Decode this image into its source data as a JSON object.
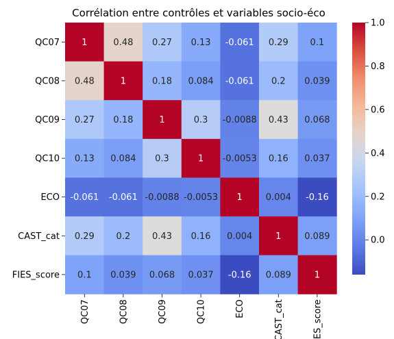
{
  "chart_data": {
    "type": "heatmap",
    "title": "Corrélation entre contrôles et variables socio-éco",
    "xlabel": "",
    "ylabel": "",
    "row_labels": [
      "QC07",
      "QC08",
      "QC09",
      "QC10",
      "ECO",
      "CAST_cat",
      "FIES_score"
    ],
    "col_labels": [
      "QC07",
      "QC08",
      "QC09",
      "QC10",
      "ECO",
      "CAST_cat",
      "FIES_score"
    ],
    "values": [
      [
        1,
        0.48,
        0.27,
        0.13,
        -0.061,
        0.29,
        0.1
      ],
      [
        0.48,
        1,
        0.18,
        0.084,
        -0.061,
        0.2,
        0.039
      ],
      [
        0.27,
        0.18,
        1,
        0.3,
        -0.0088,
        0.43,
        0.068
      ],
      [
        0.13,
        0.084,
        0.3,
        1,
        -0.0053,
        0.16,
        0.037
      ],
      [
        -0.061,
        -0.061,
        -0.0088,
        -0.0053,
        1,
        0.004,
        -0.16
      ],
      [
        0.29,
        0.2,
        0.43,
        0.16,
        0.004,
        1,
        0.089
      ],
      [
        0.1,
        0.039,
        0.068,
        0.037,
        -0.16,
        0.089,
        1
      ]
    ],
    "cell_labels": [
      [
        "1",
        "0.48",
        "0.27",
        "0.13",
        "-0.061",
        "0.29",
        "0.1"
      ],
      [
        "0.48",
        "1",
        "0.18",
        "0.084",
        "-0.061",
        "0.2",
        "0.039"
      ],
      [
        "0.27",
        "0.18",
        "1",
        "0.3",
        "-0.0088",
        "0.43",
        "0.068"
      ],
      [
        "0.13",
        "0.084",
        "0.3",
        "1",
        "-0.0053",
        "0.16",
        "0.037"
      ],
      [
        "-0.061",
        "-0.061",
        "-0.0088",
        "-0.0053",
        "1",
        "0.004",
        "-0.16"
      ],
      [
        "0.29",
        "0.2",
        "0.43",
        "0.16",
        "0.004",
        "1",
        "0.089"
      ],
      [
        "0.1",
        "0.039",
        "0.068",
        "0.037",
        "-0.16",
        "0.089",
        "1"
      ]
    ],
    "colormap": "coolwarm",
    "colormap_stops": [
      "#3b4cc0",
      "#dddddd",
      "#b40426"
    ],
    "color_range": [
      -0.16,
      1
    ],
    "colorbar": {
      "ticks": [
        0.0,
        0.2,
        0.4,
        0.6,
        0.8,
        1.0
      ],
      "tick_labels": [
        "0.0",
        "0.2",
        "0.4",
        "0.6",
        "0.8",
        "1.0"
      ]
    },
    "grid": false,
    "legend": "colorbar-right"
  }
}
